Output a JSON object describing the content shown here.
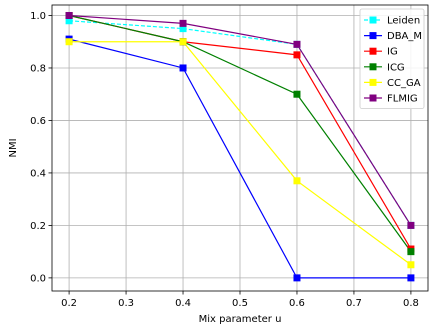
{
  "chart_data": {
    "type": "line",
    "title": "",
    "xlabel": "Mix parameter u",
    "ylabel": "NMI",
    "x": [
      0.2,
      0.4,
      0.6,
      0.8
    ],
    "xlim": [
      0.17,
      0.83
    ],
    "ylim": [
      -0.05,
      1.04
    ],
    "xticks": [
      "0.2",
      "0.3",
      "0.4",
      "0.5",
      "0.6",
      "0.7",
      "0.8"
    ],
    "yticks": [
      "0.0",
      "0.2",
      "0.4",
      "0.6",
      "0.8",
      "1.0"
    ],
    "grid": true,
    "legend_position": "top-right",
    "series": [
      {
        "name": "Leiden",
        "color": "#00ffff",
        "linestyle": "dashed",
        "values": [
          0.98,
          0.95,
          0.89,
          0.2
        ]
      },
      {
        "name": "DBA_M",
        "color": "#0000ff",
        "linestyle": "solid",
        "values": [
          0.91,
          0.8,
          0.0,
          0.0
        ]
      },
      {
        "name": "IG",
        "color": "#ff0000",
        "linestyle": "solid",
        "values": [
          1.0,
          0.9,
          0.85,
          0.11
        ]
      },
      {
        "name": "ICG",
        "color": "#008000",
        "linestyle": "solid",
        "values": [
          1.0,
          0.9,
          0.7,
          0.1
        ]
      },
      {
        "name": "CC_GA",
        "color": "#ffff00",
        "linestyle": "solid",
        "values": [
          0.9,
          0.9,
          0.37,
          0.05
        ]
      },
      {
        "name": "FLMIG",
        "color": "#800080",
        "linestyle": "solid",
        "values": [
          1.0,
          0.97,
          0.89,
          0.2
        ]
      }
    ]
  }
}
